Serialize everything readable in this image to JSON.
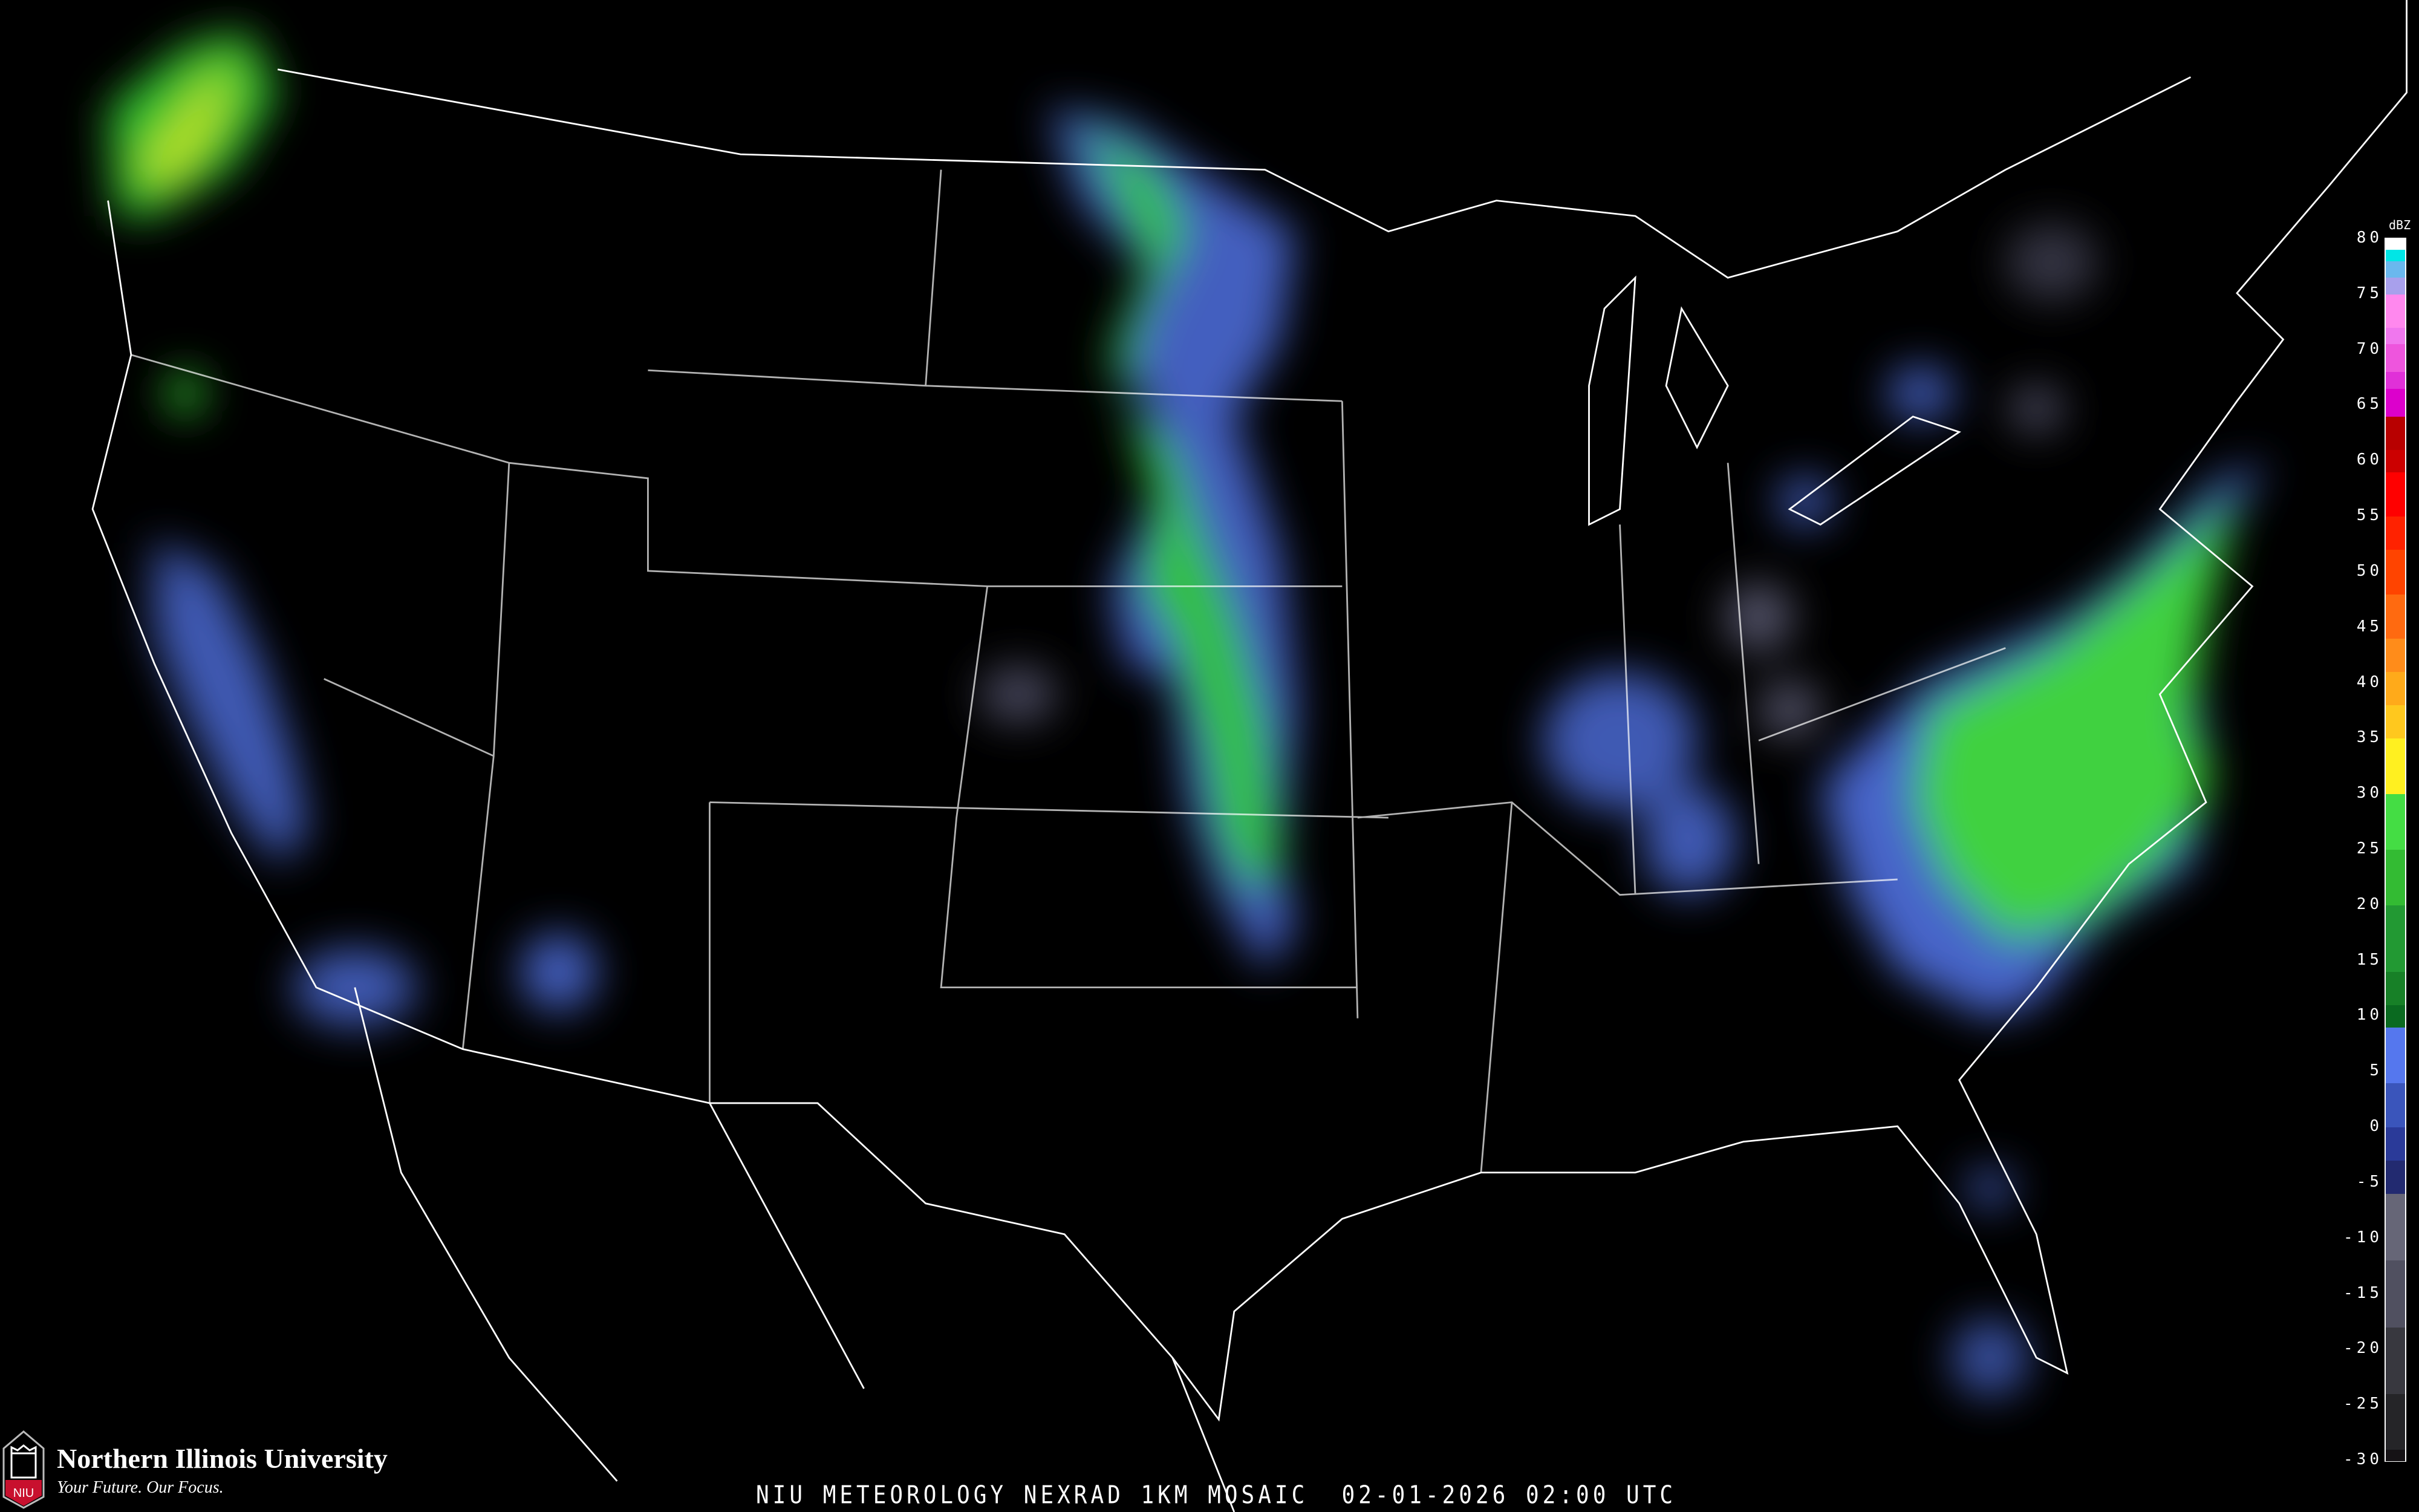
{
  "caption": "NIU METEOROLOGY NEXRAD 1KM MOSAIC  02-01-2026 02:00 UTC",
  "logo": {
    "name": "Northern Illinois University",
    "tagline": "Your Future. Our Focus.",
    "shield_text": "NIU",
    "brand_color": "#c8102e"
  },
  "legend": {
    "unit": "dBZ",
    "ticks": [
      "80",
      "75",
      "70",
      "65",
      "60",
      "55",
      "50",
      "45",
      "40",
      "35",
      "30",
      "25",
      "20",
      "15",
      "10",
      "5",
      "0",
      "-5",
      "-10",
      "-15",
      "-20",
      "-25",
      "-30"
    ],
    "range": [
      -30,
      80
    ],
    "colors": [
      {
        "from": 80,
        "color": "#ffffff"
      },
      {
        "from": 79,
        "color": "#00e6e6"
      },
      {
        "from": 78,
        "color": "#6ab8ee"
      },
      {
        "from": 76.5,
        "color": "#a8a0ec"
      },
      {
        "from": 75,
        "color": "#ff88ee"
      },
      {
        "from": 72,
        "color": "#f077ee"
      },
      {
        "from": 70.5,
        "color": "#ee55dd"
      },
      {
        "from": 68,
        "color": "#e030d8"
      },
      {
        "from": 66.5,
        "color": "#dc00cc"
      },
      {
        "from": 64,
        "color": "#b80000"
      },
      {
        "from": 61,
        "color": "#cc0000"
      },
      {
        "from": 59,
        "color": "#ff0000"
      },
      {
        "from": 55,
        "color": "#ff2200"
      },
      {
        "from": 52,
        "color": "#ff4400"
      },
      {
        "from": 48,
        "color": "#ff6a10"
      },
      {
        "from": 44,
        "color": "#ff8c1a"
      },
      {
        "from": 41,
        "color": "#ffaa1a"
      },
      {
        "from": 38,
        "color": "#ffc81e"
      },
      {
        "from": 35,
        "color": "#fff020"
      },
      {
        "from": 30,
        "color": "#44dd44"
      },
      {
        "from": 25,
        "color": "#33bb33"
      },
      {
        "from": 20,
        "color": "#229933"
      },
      {
        "from": 14,
        "color": "#178027"
      },
      {
        "from": 11,
        "color": "#0a6a20"
      },
      {
        "from": 9,
        "color": "#5577ee"
      },
      {
        "from": 4,
        "color": "#3a55bb"
      },
      {
        "from": 0,
        "color": "#2a3a99"
      },
      {
        "from": -3,
        "color": "#222a70"
      },
      {
        "from": -6,
        "color": "#666677"
      },
      {
        "from": -12,
        "color": "#505060"
      },
      {
        "from": -18,
        "color": "#38383f"
      },
      {
        "from": -24,
        "color": "#252528"
      },
      {
        "from": -29,
        "color": "#151215"
      }
    ]
  }
}
